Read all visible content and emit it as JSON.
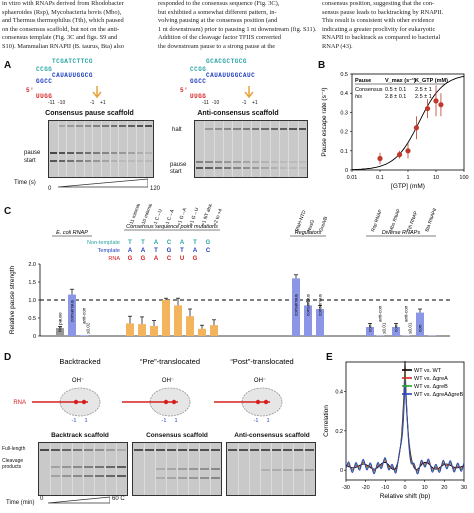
{
  "top_text": {
    "col1": [
      "in vitro with RNAPs derived from Rhodobacter",
      "sphaeroides (Rsp), Mycobacteria bovis (Mbo),",
      "and Thermus thermophilus (Tth), which paused",
      "on the consensus scaffold, but not on the anti-",
      "consensus template (Fig. 3C and figs. S9 and",
      "S10). Mammalian RNAPII (B. taurus, Bta) also"
    ],
    "col2": [
      "responded to the consensus sequence (Fig. 3C),",
      "but exhibited a somewhat different pattern, in-",
      "volving pausing at the consensus position (and",
      "1 nt downstream) prior to pausing 1 nt downstream (fig. S11).",
      "Addition of the cleavage factor TFIIS converted",
      "the downstream pause to a strong pause at the"
    ],
    "col3": [
      "consensus position, suggesting that the con-",
      "sensus pause leads to backtracking by RNAPII.",
      "This result is consistent with other evidence",
      "indicating a greater proclivity for eukaryotic",
      "RNAPII to backtrack as compared to bacterial",
      "RNAP (43)."
    ]
  },
  "panel_labels": {
    "a": "A",
    "b": "B",
    "c": "C",
    "d": "D",
    "e": "E"
  },
  "panelA": {
    "consensus_title": "Consensus pause scaffold",
    "anticonsensus_title": "Anti-consensus scaffold",
    "seq_cons_top": "TCGATCTTCG",
    "seq_cons_nt": "CCGG",
    "seq_cons_rna": "CAUAUUGGCG",
    "seq_cons_tmpl": "GGCC",
    "seq_cons_5": "5'",
    "seq_cons_uu": "UUGG",
    "seq_anti_top": "GCACGCTGCG",
    "seq_anti_nt": "CCGG",
    "seq_anti_rna": "CAUAUUGGCAUC",
    "seq_anti_tmpl": "GGCC",
    "seq_anti_5": "5'",
    "seq_anti_uu": "UUGG",
    "pos_cons": [
      "-11",
      "-10",
      "-1",
      "+1"
    ],
    "pos_anti": [
      "-11",
      "-10",
      "-1",
      "+1"
    ],
    "halt": "halt",
    "pause": "pause",
    "start": "start",
    "time_label": "Time (s)",
    "time_start": "0",
    "time_end": "120"
  },
  "panelB": {
    "ylabel": "Pause escape rate (s⁻¹)",
    "xlabel": "[GTP] (mM)",
    "table_h1": "Pause",
    "table_h2": "V_max (s⁻¹)",
    "table_h3": "K_GTP (mM)",
    "row1": [
      "Consensus",
      "0.5 ± 0.1",
      "2.5 ± 1"
    ],
    "row2": [
      "his",
      "2.8 ± 0.1",
      "2.5 ± 1"
    ],
    "yticks": [
      "0",
      "0.1",
      "0.2",
      "0.3",
      "0.4",
      "0.5"
    ],
    "xticks": [
      "0.01",
      "0.1",
      "1",
      "10",
      "100"
    ]
  },
  "panelC": {
    "ylabel": "Relative pause strength",
    "group_titles": [
      "E. coli RNAP",
      "Consensus sequence point mutations",
      "Regulators",
      "Diverse RNAPs"
    ],
    "mutation_labels": [
      "-11 mismatch",
      "-10 mismatch",
      "-1 C→U",
      "-1 C→A",
      "+1 G→A",
      "+1 G→U",
      "+1 NT abasic",
      "+2 to +4"
    ],
    "regulator_labels": [
      "RfaH-NTD",
      "NusG",
      "GreA/B"
    ],
    "rnap_labels": [
      "Rsp RNAP",
      "Mbo RNAP",
      "Tth RNAP",
      "Bta RNAPII"
    ],
    "strand_labels": [
      "Non-template",
      "Template",
      "RNA"
    ],
    "nt_seq": [
      "T",
      "T",
      "A",
      "C",
      "A",
      "T",
      "G"
    ],
    "tmpl_seq": [
      "A",
      "A",
      "T",
      "G",
      "T",
      "A",
      "C"
    ],
    "rna_seq": [
      "G",
      "G",
      "A",
      "C",
      "U",
      "G"
    ],
    "bar_texts": [
      "his pause",
      "consensus",
      "anti-con",
      "≤0.02",
      "consensus",
      "consensus",
      "consensus",
      "anti-con",
      "con",
      "≤0.01",
      "anti-con",
      "con",
      "≤0.01",
      "con"
    ],
    "yticks": [
      "0",
      "0.5",
      "1.0",
      "1.5",
      "2.0"
    ]
  },
  "panelD": {
    "states": [
      "Backtracked",
      "“Pre”-translocated",
      "“Post”-translocated"
    ],
    "oh": "OH⁻",
    "rna": "RNA",
    "gel_titles": [
      "Backtrack scaffold",
      "Consensus scaffold",
      "Anti-consensus scaffold"
    ],
    "fulllength": "Full-length",
    "cleavage": "Cleavage products",
    "time_label": "Time (min)",
    "t0": "0",
    "t60": "60 C",
    "nums": [
      "-1",
      "1"
    ]
  },
  "panelE": {
    "ylabel": "Correlation",
    "xlabel": "Relative shift (bp)",
    "legend": [
      "WT vs. WT",
      "WT vs. ΔgreA",
      "WT vs. ΔgreB",
      "WT vs. ΔgreAΔgreB"
    ],
    "legend_colors": [
      "#000000",
      "#d62728",
      "#2ca02c",
      "#2a3fbf"
    ],
    "xticks": [
      "-30",
      "-20",
      "-10",
      "0",
      "10",
      "20",
      "30"
    ],
    "yticks": [
      "0",
      "0.2",
      "0.4"
    ]
  },
  "chart_data": [
    {
      "type": "scatter",
      "panel": "B",
      "xlabel": "[GTP] (mM)",
      "ylabel": "Pause escape rate (s⁻¹)",
      "xscale": "log",
      "xlim": [
        0.01,
        100
      ],
      "ylim": [
        0,
        0.5
      ],
      "points": [
        {
          "x": 0.1,
          "y": 0.06,
          "err": 0.03
        },
        {
          "x": 0.5,
          "y": 0.08,
          "err": 0.02
        },
        {
          "x": 1,
          "y": 0.1,
          "err": 0.04
        },
        {
          "x": 2,
          "y": 0.22,
          "err": 0.06
        },
        {
          "x": 5,
          "y": 0.32,
          "err": 0.05
        },
        {
          "x": 10,
          "y": 0.36,
          "err": 0.08
        },
        {
          "x": 15,
          "y": 0.34,
          "err": 0.06
        }
      ],
      "fit": {
        "vmax": 0.5,
        "k": 2.5
      }
    },
    {
      "type": "bar",
      "panel": "C",
      "ylabel": "Relative pause strength",
      "ylim": [
        0,
        2
      ],
      "reference_line": 1,
      "values": [
        0.22,
        1.15,
        0.02,
        0.35,
        0.33,
        0.28,
        1.0,
        0.85,
        0.55,
        0.2,
        0.3,
        1.6,
        0.85,
        0.75,
        0.25,
        0.01,
        0.25,
        0.01,
        0.65,
        0.01
      ],
      "errors": [
        0.04,
        0.15,
        0.0,
        0.2,
        0.2,
        0.15,
        0.05,
        0.2,
        0.2,
        0.1,
        0.15,
        0.1,
        0.1,
        0.1,
        0.1,
        0.0,
        0.1,
        0.0,
        0.1,
        0.0
      ],
      "colors": [
        "#999999",
        "#8c96e6",
        "#8c96e6",
        "#f2b45c",
        "#f2b45c",
        "#f2b45c",
        "#f2b45c",
        "#f2b45c",
        "#f2b45c",
        "#f2b45c",
        "#f2b45c",
        "#8c96e6",
        "#8c96e6",
        "#8c96e6",
        "#8c96e6",
        "#8c96e6",
        "#8c96e6",
        "#8c96e6",
        "#8c96e6",
        "#8c96e6"
      ]
    },
    {
      "type": "line",
      "panel": "E",
      "xlabel": "Relative shift (bp)",
      "ylabel": "Correlation",
      "xlim": [
        -30,
        30
      ],
      "ylim": [
        -0.05,
        0.55
      ]
    }
  ]
}
